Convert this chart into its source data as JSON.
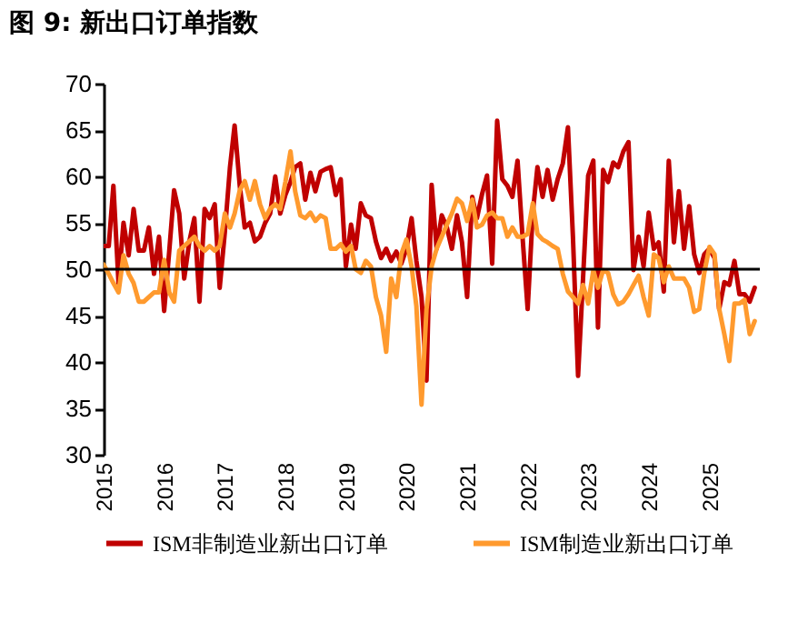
{
  "chart_data": {
    "type": "line",
    "title": "图 9: 新出口订单指数",
    "x": [
      "2015-01",
      "2015-02",
      "2015-03",
      "2015-04",
      "2015-05",
      "2015-06",
      "2015-07",
      "2015-08",
      "2015-09",
      "2015-10",
      "2015-11",
      "2015-12",
      "2016-01",
      "2016-02",
      "2016-03",
      "2016-04",
      "2016-05",
      "2016-06",
      "2016-07",
      "2016-08",
      "2016-09",
      "2016-10",
      "2016-11",
      "2016-12",
      "2017-01",
      "2017-02",
      "2017-03",
      "2017-04",
      "2017-05",
      "2017-06",
      "2017-07",
      "2017-08",
      "2017-09",
      "2017-10",
      "2017-11",
      "2017-12",
      "2018-01",
      "2018-02",
      "2018-03",
      "2018-04",
      "2018-05",
      "2018-06",
      "2018-07",
      "2018-08",
      "2018-09",
      "2018-10",
      "2018-11",
      "2018-12",
      "2019-01",
      "2019-02",
      "2019-03",
      "2019-04",
      "2019-05",
      "2019-06",
      "2019-07",
      "2019-08",
      "2019-09",
      "2019-10",
      "2019-11",
      "2019-12",
      "2020-01",
      "2020-02",
      "2020-03",
      "2020-04",
      "2020-05",
      "2020-06",
      "2020-07",
      "2020-08",
      "2020-09",
      "2020-10",
      "2020-11",
      "2020-12",
      "2021-01",
      "2021-02",
      "2021-03",
      "2021-04",
      "2021-05",
      "2021-06",
      "2021-07",
      "2021-08",
      "2021-09",
      "2021-10",
      "2021-11",
      "2021-12",
      "2022-01",
      "2022-02",
      "2022-03",
      "2022-04",
      "2022-05",
      "2022-06",
      "2022-07",
      "2022-08",
      "2022-09",
      "2022-10",
      "2022-11",
      "2022-12",
      "2023-01",
      "2023-02",
      "2023-03",
      "2023-04",
      "2023-05",
      "2023-06",
      "2023-07",
      "2023-08",
      "2023-09",
      "2023-10",
      "2023-11",
      "2023-12",
      "2024-01",
      "2024-02",
      "2024-03",
      "2024-04",
      "2024-05",
      "2024-06",
      "2024-07",
      "2024-08",
      "2024-09",
      "2024-10",
      "2024-11",
      "2024-12",
      "2025-01",
      "2025-02",
      "2025-03",
      "2025-04",
      "2025-05",
      "2025-06",
      "2025-07",
      "2025-08",
      "2025-09",
      "2025-10"
    ],
    "series": [
      {
        "name": "ISM非制造业新出口订单",
        "color": "#c00000",
        "values": [
          52.5,
          52.5,
          59,
          48.5,
          55,
          51.5,
          56.5,
          52,
          52,
          54.5,
          49.5,
          53.5,
          45.5,
          52,
          58.5,
          56,
          49,
          53,
          55.5,
          46.5,
          56.5,
          55.5,
          57,
          48,
          54,
          61,
          65.5,
          59,
          54.5,
          55,
          53,
          53.5,
          55,
          56,
          60,
          56,
          58,
          59.4,
          61,
          61.4,
          57.5,
          60.4,
          58.4,
          60.5,
          60.8,
          61,
          58,
          59.7,
          50.3,
          54.8,
          52.2,
          57.1,
          55.8,
          55.5,
          53,
          51.2,
          52.2,
          50.9,
          51.9,
          50.6,
          52.2,
          55.5,
          50.9,
          47,
          38,
          59.1,
          52.2,
          55.8,
          54.5,
          52.2,
          55.8,
          52.9,
          47,
          57.8,
          55.5,
          58.1,
          60.1,
          50.6,
          66,
          59.7,
          59,
          57.8,
          61.7,
          53.5,
          45.7,
          56.1,
          61,
          57.8,
          60.7,
          57.5,
          59.7,
          61.4,
          65.3,
          53.5,
          38.5,
          49,
          60.1,
          61.7,
          43.7,
          60.7,
          59.4,
          61.5,
          61,
          62.7,
          63.7,
          49.9,
          53.5,
          50.3,
          56.1,
          52.2,
          52.9,
          47.6,
          61.7,
          52.9,
          58.4,
          52.2,
          56.8,
          51.6,
          49.6,
          51.6,
          52.2,
          51.2,
          45.7,
          48.6,
          48.3,
          50.9,
          47.3,
          47.3,
          46.5,
          48
        ]
      },
      {
        "name": "ISM制造业新出口订单",
        "color": "#ff9a2e",
        "values": [
          50.5,
          49.5,
          48.5,
          47.5,
          51.5,
          49.5,
          48.5,
          46.5,
          46.5,
          47,
          47.5,
          47.5,
          51,
          47.5,
          46.5,
          52,
          52.5,
          53,
          53.5,
          52.5,
          52,
          52.5,
          52,
          52.5,
          56,
          54.5,
          56,
          58.5,
          59.5,
          57.5,
          59.5,
          57,
          55.5,
          56.5,
          57,
          56.5,
          59.4,
          62.7,
          58.4,
          55.8,
          55.5,
          56.1,
          55.2,
          55.8,
          55.5,
          52.2,
          52.2,
          52.7,
          51.9,
          52.5,
          50,
          49.6,
          50.9,
          50.3,
          47,
          45,
          41.1,
          49,
          47,
          51.6,
          53.2,
          50.3,
          46,
          35.4,
          45.7,
          50.3,
          52.2,
          53.5,
          54.8,
          56,
          57.6,
          57.1,
          55.2,
          57.5,
          54.5,
          54.8,
          55.8,
          56.1,
          55.5,
          55.5,
          53.5,
          54.5,
          53.5,
          53.5,
          53.8,
          57.1,
          53.8,
          53.2,
          52.9,
          52.5,
          52.2,
          49.5,
          47.6,
          47,
          46.3,
          48.3,
          46.3,
          49.9,
          48,
          49.9,
          49.6,
          47.3,
          46.2,
          46.5,
          47.3,
          48.3,
          49.3,
          47,
          45,
          51.6,
          51.2,
          48.6,
          50.3,
          49,
          49,
          49,
          48,
          45.4,
          45.7,
          49.6,
          52.4,
          51.6,
          45.7,
          43,
          40.1,
          46.3,
          46.3,
          46.7,
          43,
          44.4
        ]
      }
    ],
    "xlim": [
      "2015-01",
      "2025-11"
    ],
    "xticks": [
      "2015",
      "2016",
      "2017",
      "2018",
      "2019",
      "2020",
      "2021",
      "2022",
      "2023",
      "2024",
      "2025"
    ],
    "ylim": [
      30,
      70
    ],
    "yticks": [
      30,
      35,
      40,
      45,
      50,
      55,
      60,
      65,
      70
    ],
    "ref_lines": [
      {
        "axis": "y",
        "value": 50,
        "color": "#000000"
      }
    ],
    "legend": "bottom",
    "grid": false,
    "line_style": "solid",
    "marker": "none"
  }
}
